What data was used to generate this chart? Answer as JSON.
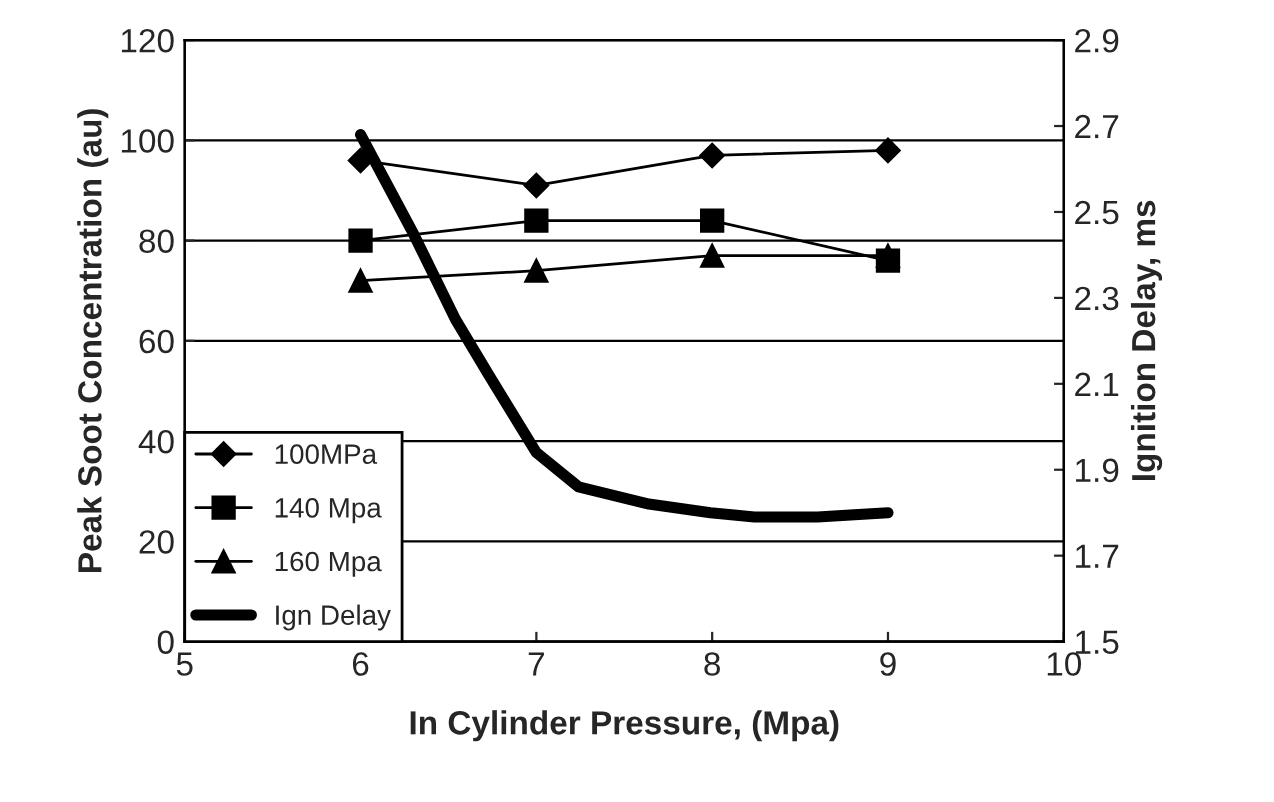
{
  "chart_data": {
    "type": "line",
    "xlabel": "In Cylinder Pressure, (Mpa)",
    "ylabel": "Peak Soot Concentration (au)",
    "y2label": "Ignition Delay, ms",
    "x": [
      6,
      7,
      8,
      9
    ],
    "series": [
      {
        "name": "100MPa",
        "color": "#000000",
        "marker": "diamond",
        "values": [
          96,
          91,
          97,
          98
        ]
      },
      {
        "name": "140 Mpa",
        "color": "#000000",
        "marker": "square",
        "values": [
          80,
          84,
          84,
          76
        ]
      },
      {
        "name": "160 Mpa",
        "color": "#000000",
        "marker": "triangle",
        "values": [
          72,
          74,
          77,
          77
        ]
      },
      {
        "name": "Ign Delay",
        "color": "#000000",
        "marker": "none",
        "axis": "y2",
        "x": [
          6.0,
          6.3,
          6.54,
          6.73,
          7.0,
          7.24,
          7.64,
          7.99,
          8.24,
          8.6,
          9.0
        ],
        "values": [
          2.68,
          2.45,
          2.25,
          2.12,
          1.94,
          1.86,
          1.82,
          1.8,
          1.79,
          1.79,
          1.8
        ]
      }
    ],
    "xlim": [
      5,
      10
    ],
    "xticks": [
      5,
      6,
      7,
      8,
      9,
      10
    ],
    "ylim": [
      0,
      120
    ],
    "yticks": [
      0,
      20,
      40,
      60,
      80,
      100,
      120
    ],
    "y2lim": [
      1.5,
      2.9
    ],
    "y2ticks": [
      1.5,
      1.7,
      1.9,
      2.1,
      2.3,
      2.5,
      2.7,
      2.9
    ],
    "grid": "y",
    "legend": "bottom left"
  }
}
